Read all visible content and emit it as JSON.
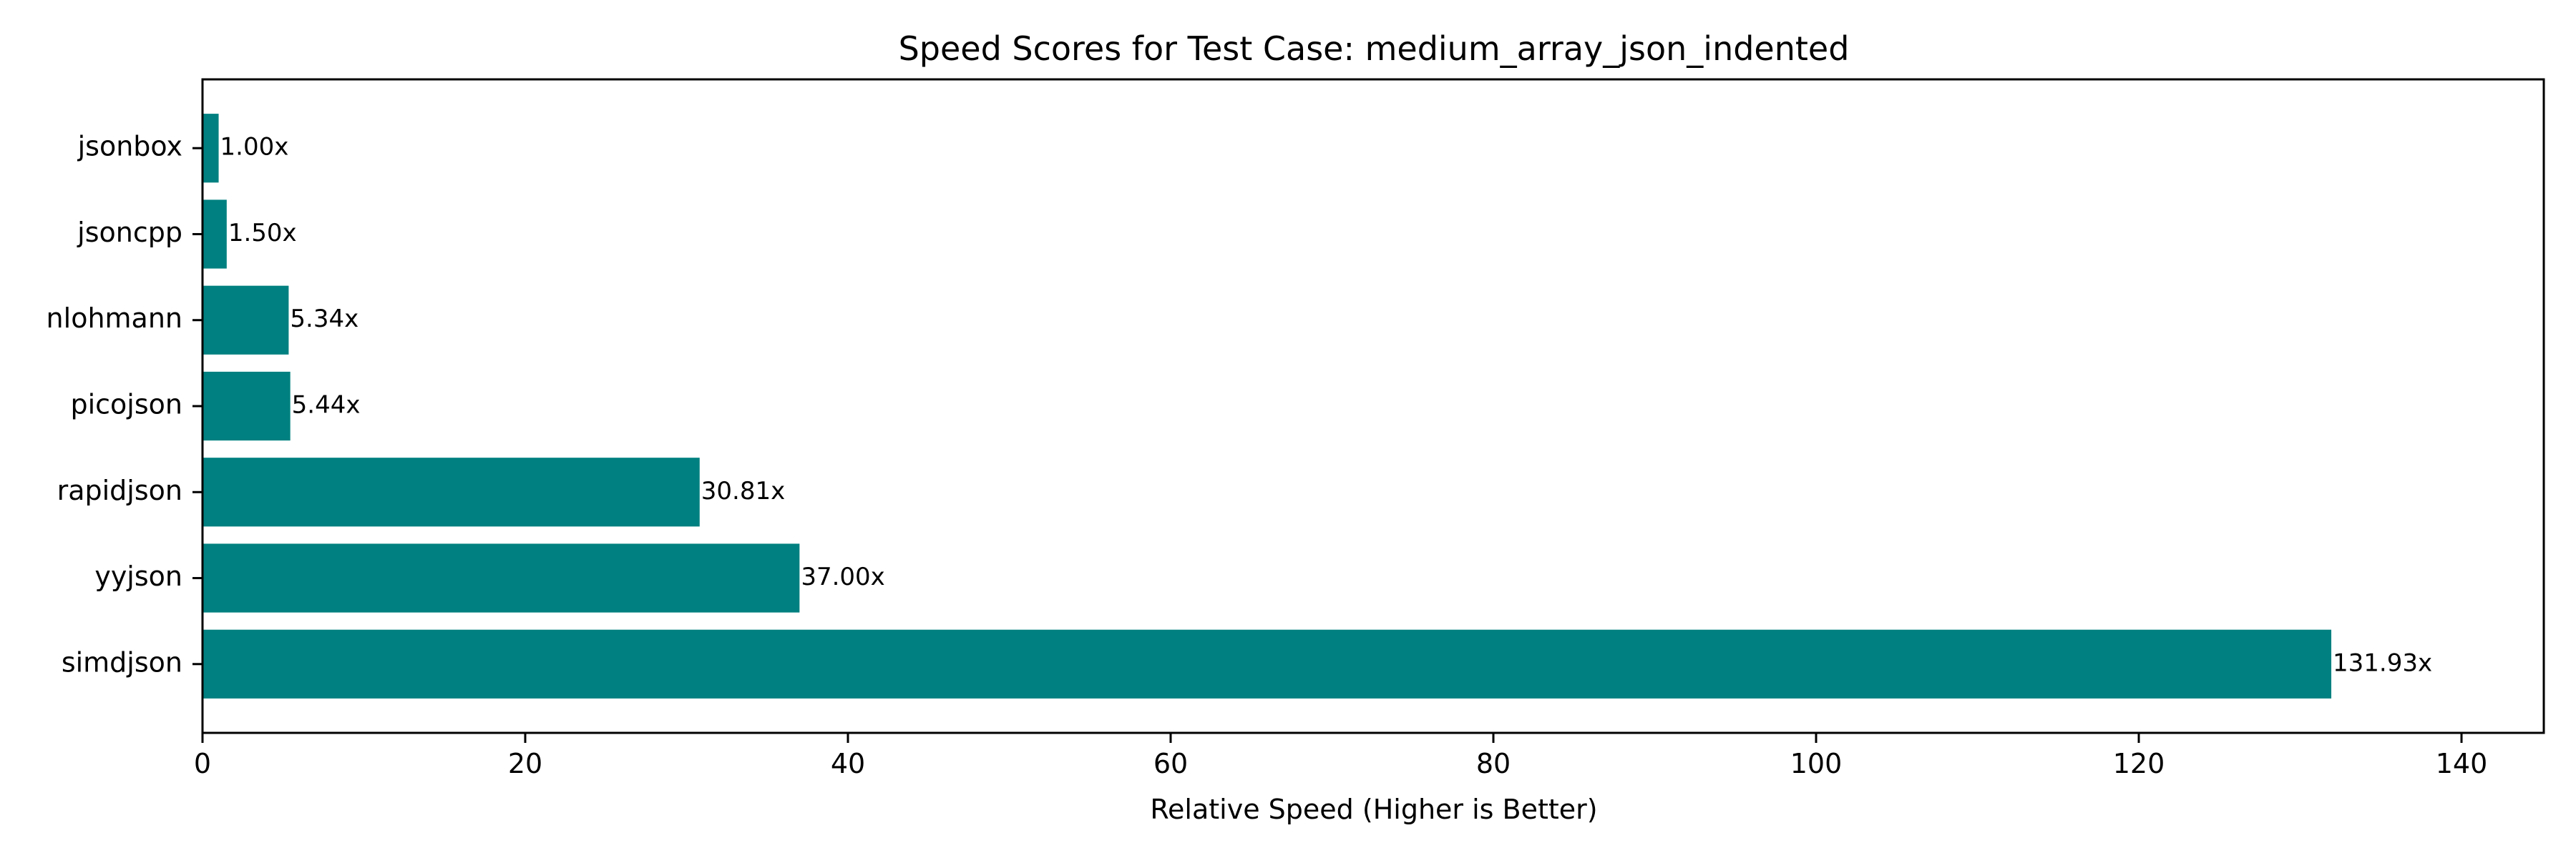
{
  "chart_data": {
    "type": "bar",
    "orientation": "horizontal",
    "title": "Speed Scores for Test Case: medium_array_json_indented",
    "xlabel": "Relative Speed (Higher is Better)",
    "ylabel": "",
    "categories": [
      "jsonbox",
      "jsoncpp",
      "nlohmann",
      "picojson",
      "rapidjson",
      "yyjson",
      "simdjson"
    ],
    "values": [
      1.0,
      1.5,
      5.34,
      5.44,
      30.81,
      37.0,
      131.93
    ],
    "data_labels": [
      "1.00x",
      "1.50x",
      "5.34x",
      "5.44x",
      "30.81x",
      "37.00x",
      "131.93x"
    ],
    "xlim": [
      0,
      145.1
    ],
    "xticks": [
      0,
      20,
      40,
      60,
      80,
      100,
      120,
      140
    ],
    "xtick_labels": [
      "0",
      "20",
      "40",
      "60",
      "80",
      "100",
      "120",
      "140"
    ],
    "grid": false,
    "legend": "none",
    "bar_color": "#008080"
  }
}
